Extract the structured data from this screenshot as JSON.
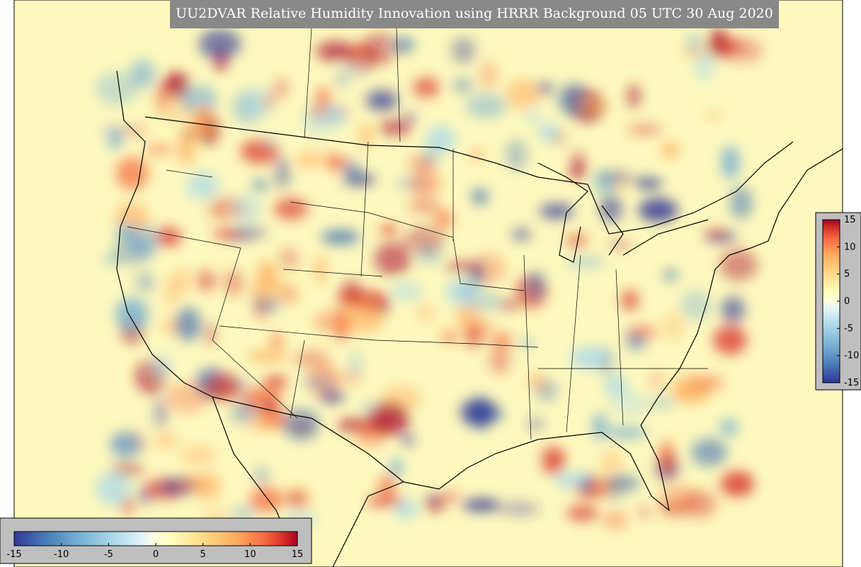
{
  "title": "UU2DVAR Relative Humidity Innovation using HRRR Background 05 UTC 30 Aug 2020",
  "colorbar_horizontal": {
    "ticks": [
      -15,
      -10,
      -5,
      0,
      5,
      10,
      15
    ]
  },
  "colorbar_vertical": {
    "ticks": [
      -15,
      -10,
      -5,
      0,
      5,
      10,
      15
    ]
  }
}
